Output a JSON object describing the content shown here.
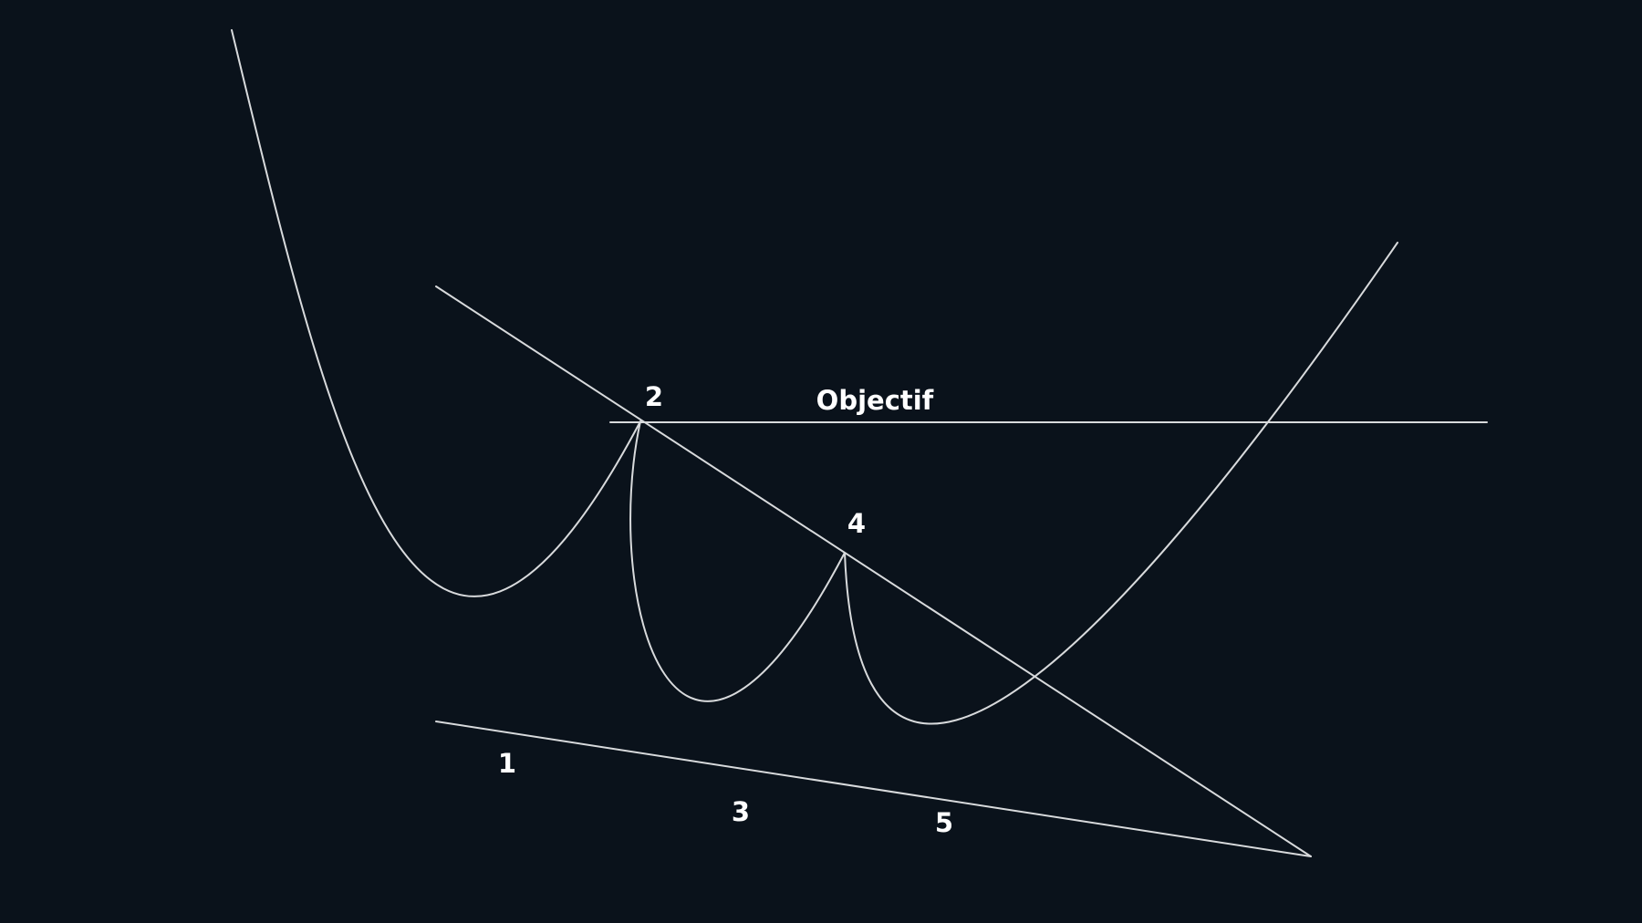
{
  "diagram": {
    "background_color": "#0a121b",
    "line_color": "#d8dadc",
    "label_color": "#ffffff",
    "target_label": "Objectif",
    "points": [
      {
        "id": "1",
        "label": "1"
      },
      {
        "id": "2",
        "label": "2"
      },
      {
        "id": "3",
        "label": "3"
      },
      {
        "id": "4",
        "label": "4"
      },
      {
        "id": "5",
        "label": "5"
      }
    ]
  }
}
